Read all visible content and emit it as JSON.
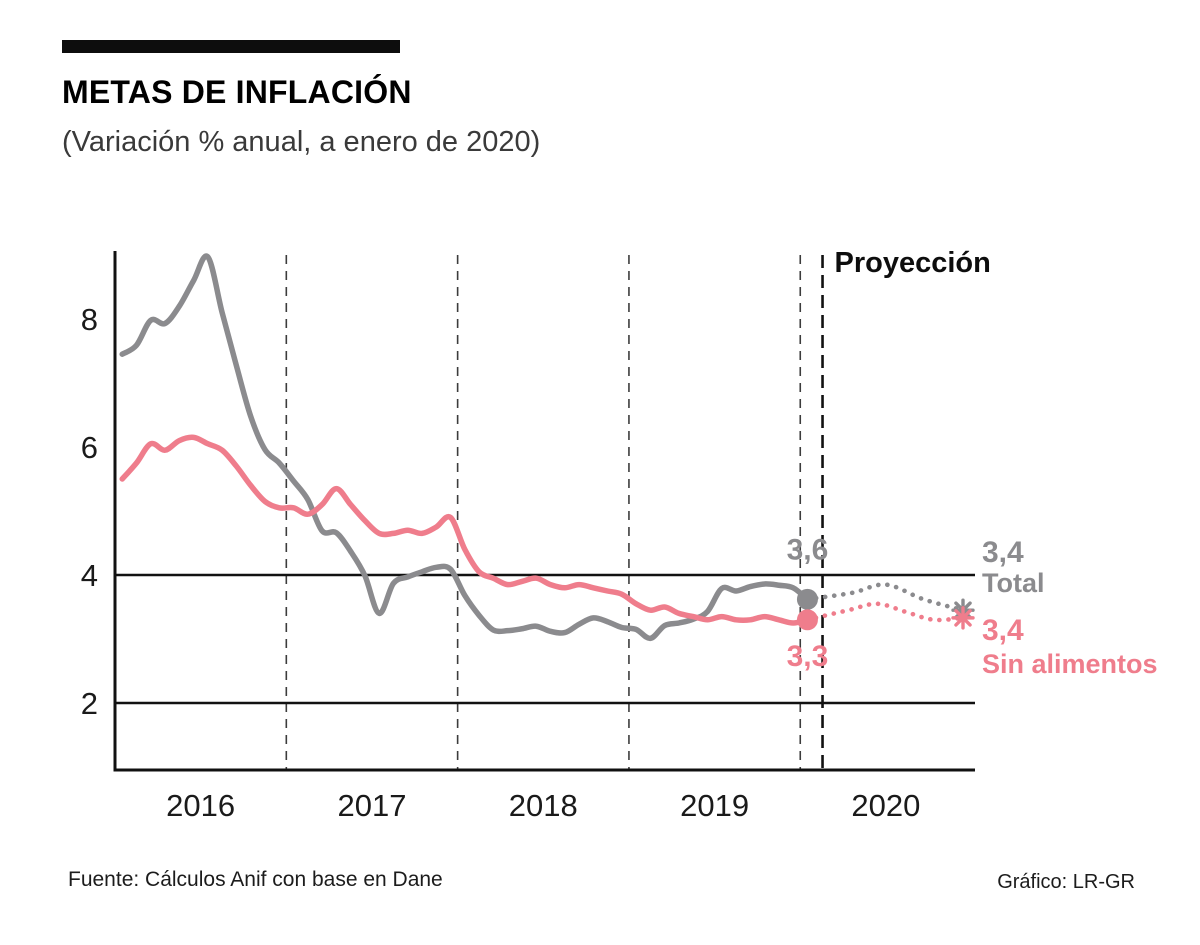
{
  "header": {
    "title": "METAS DE INFLACIÓN",
    "subtitle": "(Variación % anual, a enero de 2020)"
  },
  "footer": {
    "source": "Fuente: Cálculos Anif con base en Dane",
    "credit": "Gráfico: LR-GR"
  },
  "chart_data": {
    "type": "line",
    "title": "METAS DE INFLACIÓN",
    "subtitle": "(Variación % anual, a enero de 2020)",
    "xlabel": "",
    "ylabel": "",
    "ylim": [
      1,
      9
    ],
    "xlim": [
      2016,
      2021.02
    ],
    "yticks": [
      2,
      4,
      6,
      8
    ],
    "x_year_labels": [
      "2016",
      "2017",
      "2018",
      "2019",
      "2020"
    ],
    "year_gridlines": [
      2017,
      2018,
      2019,
      2020
    ],
    "target_lines": [
      2,
      4
    ],
    "projection_label": "Proyección",
    "projection_start_x": 2020.13,
    "grid": "dashed-vertical-year-dividers",
    "legend_position": "right-inline",
    "colors": {
      "total": "#8b8b8e",
      "sin_alimentos": "#ef7d8c",
      "axis": "#111111"
    },
    "series": [
      {
        "name": "Total",
        "color": "#8b8b8e",
        "x_start": 2016.042,
        "x_step": 0.08333,
        "values": [
          7.45,
          7.59,
          7.98,
          7.93,
          8.2,
          8.6,
          8.97,
          8.1,
          7.27,
          6.48,
          5.96,
          5.75,
          5.47,
          5.18,
          4.69,
          4.66,
          4.37,
          3.99,
          3.4,
          3.87,
          3.97,
          4.05,
          4.12,
          4.09,
          3.68,
          3.37,
          3.14,
          3.13,
          3.16,
          3.2,
          3.12,
          3.1,
          3.23,
          3.33,
          3.27,
          3.18,
          3.15,
          3.01,
          3.21,
          3.25,
          3.31,
          3.43,
          3.79,
          3.75,
          3.82,
          3.86,
          3.84,
          3.8,
          3.62
        ],
        "last_label": "3,6"
      },
      {
        "name": "Sin alimentos",
        "color": "#ef7d8c",
        "x_start": 2016.042,
        "x_step": 0.08333,
        "values": [
          5.5,
          5.75,
          6.05,
          5.95,
          6.1,
          6.15,
          6.05,
          5.95,
          5.7,
          5.4,
          5.15,
          5.05,
          5.05,
          4.95,
          5.1,
          5.35,
          5.1,
          4.85,
          4.65,
          4.65,
          4.7,
          4.65,
          4.75,
          4.9,
          4.4,
          4.05,
          3.95,
          3.85,
          3.9,
          3.95,
          3.85,
          3.8,
          3.85,
          3.8,
          3.75,
          3.7,
          3.55,
          3.45,
          3.5,
          3.4,
          3.35,
          3.3,
          3.35,
          3.3,
          3.3,
          3.35,
          3.3,
          3.25,
          3.3
        ],
        "last_label": "3,3"
      }
    ],
    "projections": [
      {
        "name": "Total",
        "color": "#8b8b8e",
        "points": [
          [
            2020.04,
            3.62
          ],
          [
            2020.3,
            3.72
          ],
          [
            2020.5,
            3.85
          ],
          [
            2020.72,
            3.62
          ],
          [
            2020.95,
            3.45
          ]
        ],
        "end_label": "3,4",
        "end_name": "Total"
      },
      {
        "name": "Sin alimentos",
        "color": "#ef7d8c",
        "points": [
          [
            2020.04,
            3.3
          ],
          [
            2020.28,
            3.45
          ],
          [
            2020.45,
            3.55
          ],
          [
            2020.62,
            3.42
          ],
          [
            2020.78,
            3.3
          ],
          [
            2020.95,
            3.33
          ]
        ],
        "end_label": "3,4",
        "end_name": "Sin alimentos"
      }
    ]
  }
}
